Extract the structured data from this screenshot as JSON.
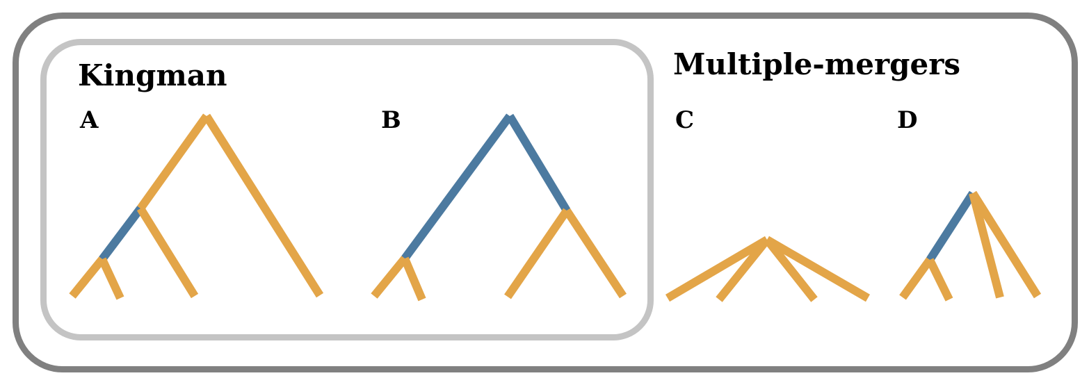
{
  "groups": {
    "kingman": {
      "title": "Kingman"
    },
    "multiple_mergers": {
      "title": "Multiple-mergers"
    }
  },
  "panels": {
    "A": {
      "label": "A"
    },
    "B": {
      "label": "B"
    },
    "C": {
      "label": "C"
    },
    "D": {
      "label": "D"
    }
  },
  "colors": {
    "branch_default": "#e3a548",
    "branch_highlight": "#4c7aa0",
    "outer_frame": "#808080",
    "inner_frame": "#c4c4c4"
  }
}
